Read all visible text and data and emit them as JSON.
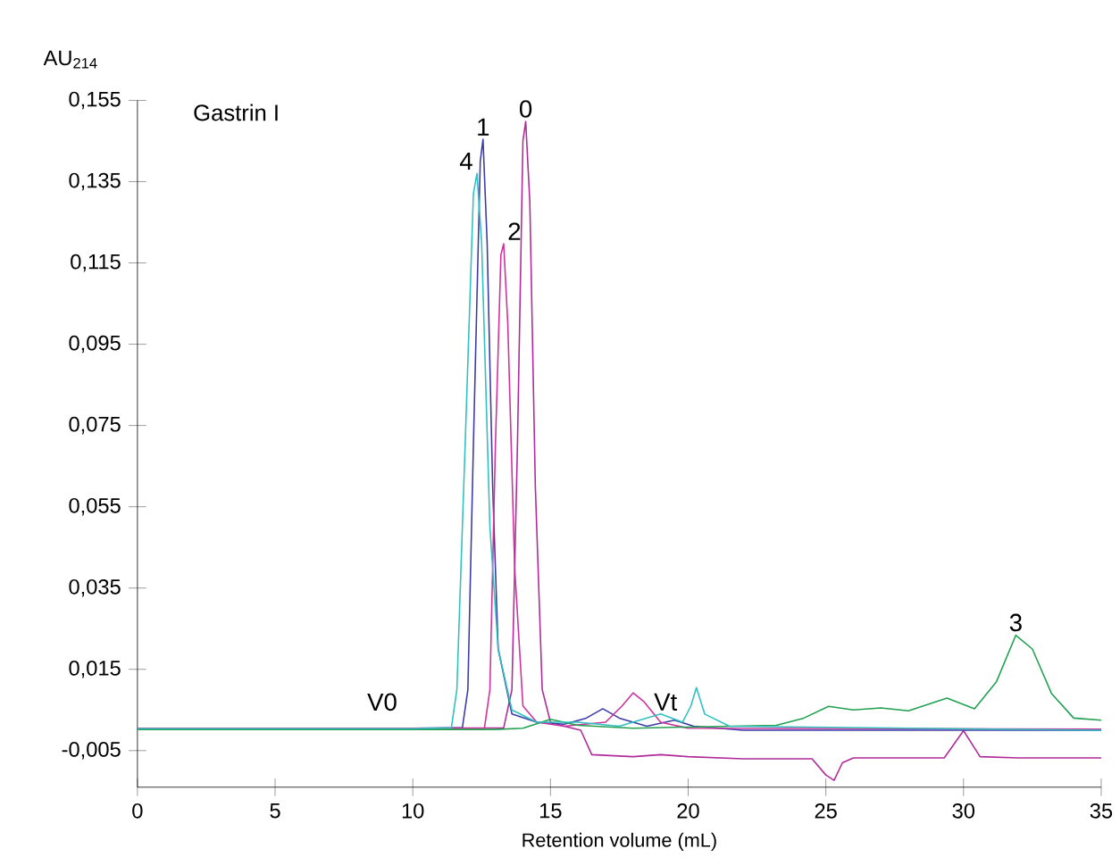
{
  "chart_data": {
    "type": "line",
    "title": "Gastrin I",
    "xlabel": "Retention volume (mL)",
    "ylabel": "AU$_{214}$",
    "xlim": [
      0,
      35
    ],
    "ylim": [
      -0.014,
      0.155
    ],
    "xticks": [
      0,
      5,
      10,
      15,
      20,
      25,
      30,
      35
    ],
    "yticks": [
      {
        "value": -0.005,
        "label": "-0,005"
      },
      {
        "value": 0.015,
        "label": "0,015"
      },
      {
        "value": 0.035,
        "label": "0,035"
      },
      {
        "value": 0.055,
        "label": "0,055"
      },
      {
        "value": 0.075,
        "label": "0,075"
      },
      {
        "value": 0.095,
        "label": "0,095"
      },
      {
        "value": 0.115,
        "label": "0,115"
      },
      {
        "value": 0.135,
        "label": "0,135"
      },
      {
        "value": 0.155,
        "label": "0,155"
      }
    ],
    "grid": false,
    "legend": false,
    "marker": "none",
    "line_style": "solid",
    "annotations": [
      "V0",
      "Vt"
    ],
    "series": [
      {
        "name": "0",
        "color": "#b02a9a",
        "x": [
          0,
          5,
          10,
          13.3,
          13.6,
          13.8,
          14.0,
          14.1,
          14.25,
          14.45,
          14.7,
          15.0,
          15.5,
          16.1,
          16.5,
          18,
          19,
          20,
          22,
          24.5,
          25.0,
          25.3,
          25.6,
          26,
          29.3,
          30.0,
          30.6,
          32,
          35
        ],
        "values": [
          0.0005,
          0.0004,
          0.0005,
          0.0006,
          0.01,
          0.07,
          0.145,
          0.1498,
          0.13,
          0.06,
          0.01,
          0.002,
          0.001,
          0.0,
          -0.006,
          -0.0065,
          -0.006,
          -0.0065,
          -0.007,
          -0.007,
          -0.011,
          -0.0123,
          -0.008,
          -0.0068,
          -0.0068,
          -0.0001,
          -0.0065,
          -0.0068,
          -0.0068
        ]
      },
      {
        "name": "1",
        "color": "#3b3ba8",
        "x": [
          0,
          5,
          10,
          11.8,
          12.0,
          12.2,
          12.45,
          12.55,
          12.7,
          12.9,
          13.1,
          13.6,
          14.5,
          15.5,
          16.3,
          16.9,
          17.5,
          18.5,
          19.5,
          20.2,
          22,
          35
        ],
        "values": [
          0.0005,
          0.0003,
          0.0005,
          0.0006,
          0.01,
          0.07,
          0.14,
          0.1454,
          0.12,
          0.06,
          0.02,
          0.004,
          0.002,
          0.0015,
          0.003,
          0.0053,
          0.003,
          0.001,
          0.0025,
          0.001,
          0.0,
          0.0
        ]
      },
      {
        "name": "2",
        "color": "#d0309c",
        "x": [
          0,
          10,
          12.6,
          12.8,
          13.0,
          13.2,
          13.3,
          13.45,
          13.7,
          14.0,
          14.5,
          15.5,
          17,
          17.6,
          18.0,
          18.4,
          19,
          20,
          35
        ],
        "values": [
          0.0005,
          0.0005,
          0.0005,
          0.01,
          0.07,
          0.117,
          0.1197,
          0.1,
          0.04,
          0.006,
          0.002,
          0.001,
          0.002,
          0.006,
          0.0092,
          0.007,
          0.002,
          0.0005,
          0.0003
        ]
      },
      {
        "name": "3",
        "color": "#20a050",
        "x": [
          0,
          10,
          13,
          14,
          15,
          16,
          18,
          20,
          23.2,
          24.2,
          25.1,
          26,
          27,
          28,
          29.4,
          30.4,
          31.2,
          31.9,
          32.5,
          33.2,
          34.0,
          35
        ],
        "values": [
          0.0002,
          0.0002,
          0.0002,
          0.0005,
          0.0027,
          0.0012,
          0.0005,
          0.0008,
          0.0012,
          0.003,
          0.0059,
          0.005,
          0.0055,
          0.0048,
          0.0079,
          0.0053,
          0.012,
          0.0234,
          0.02,
          0.009,
          0.003,
          0.0025
        ]
      },
      {
        "name": "4",
        "color": "#30c0c0",
        "x": [
          0,
          10,
          11.4,
          11.6,
          11.9,
          12.2,
          12.33,
          12.5,
          12.8,
          13.1,
          13.6,
          14.5,
          16,
          17.5,
          19,
          19.8,
          20.1,
          20.3,
          20.6,
          21.5,
          35
        ],
        "values": [
          0.0004,
          0.0004,
          0.0006,
          0.01,
          0.07,
          0.132,
          0.137,
          0.12,
          0.05,
          0.02,
          0.005,
          0.002,
          0.002,
          0.001,
          0.004,
          0.002,
          0.006,
          0.0105,
          0.004,
          0.001,
          0.0
        ]
      }
    ]
  }
}
